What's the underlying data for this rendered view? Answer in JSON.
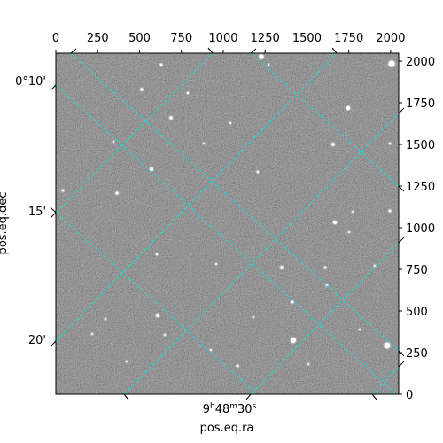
{
  "chart_data": {
    "type": "image",
    "xlabel": "pos.eq.ra",
    "ylabel": "pos.eq.dec",
    "pixel_x_ticks": [
      "0",
      "250",
      "500",
      "750",
      "1000",
      "1250",
      "1500",
      "1750",
      "2000"
    ],
    "pixel_y_ticks": [
      "0",
      "250",
      "500",
      "750",
      "1000",
      "1250",
      "1500",
      "1750",
      "2000"
    ],
    "pixel_xlim": [
      0,
      2048
    ],
    "pixel_ylim": [
      0,
      2048
    ],
    "dec_ticks": [
      "0°10'",
      "15'",
      "20'"
    ],
    "ra_tick": {
      "h": "9",
      "m": "48",
      "s": "30"
    },
    "grid": true,
    "grid_color": "#00e5e5",
    "image_colormap": "gray"
  }
}
